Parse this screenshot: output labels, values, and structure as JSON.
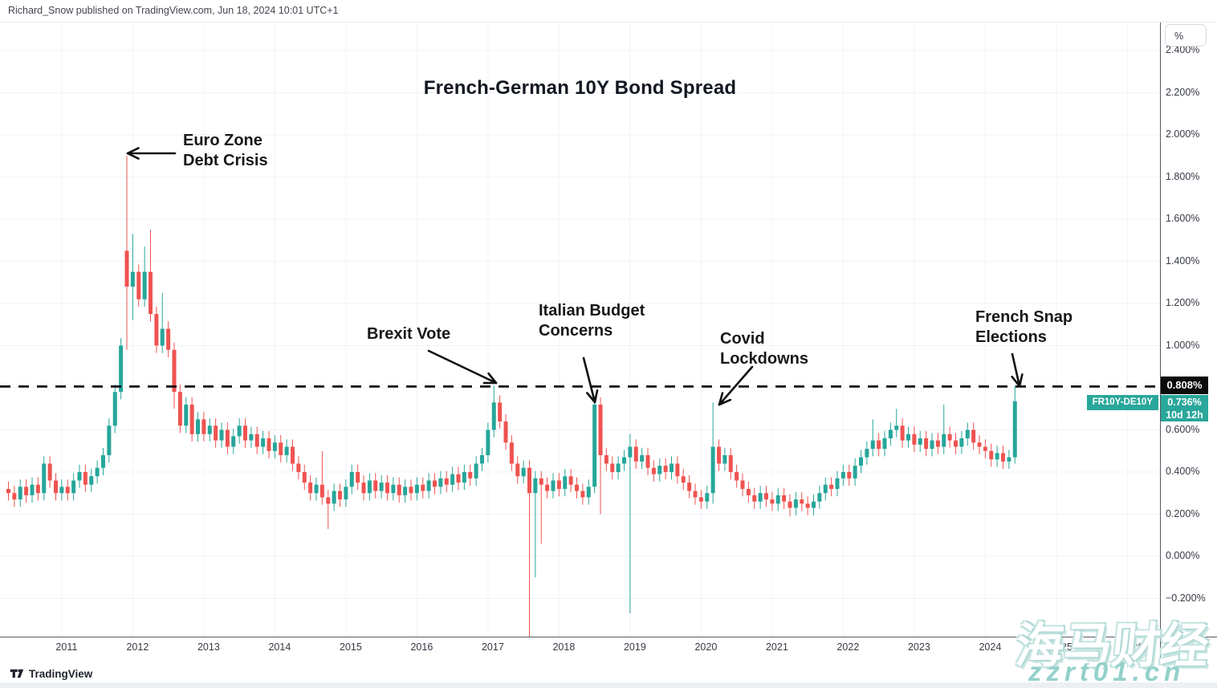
{
  "header": {
    "byline": "Richard_Snow published on TradingView.com, Jun 18, 2024 10:01 UTC+1"
  },
  "footer": {
    "brand": "TradingView"
  },
  "watermark": {
    "line1": "海马财经",
    "line2": "zzrt01.cn"
  },
  "colors": {
    "up": "#26a69a",
    "down": "#ef5350",
    "badge_teal": "#2aa79b",
    "threshold_badge_bg": "#0b0b0b",
    "grid": "#f0f3fa",
    "arrow": "#101113"
  },
  "price_scale": {
    "unit_button": "%",
    "ticks": [
      {
        "label": "2.400%",
        "value": 2.4
      },
      {
        "label": "2.200%",
        "value": 2.2
      },
      {
        "label": "2.000%",
        "value": 2.0
      },
      {
        "label": "1.800%",
        "value": 1.8
      },
      {
        "label": "1.600%",
        "value": 1.6
      },
      {
        "label": "1.400%",
        "value": 1.4
      },
      {
        "label": "1.200%",
        "value": 1.2
      },
      {
        "label": "1.000%",
        "value": 1.0
      },
      {
        "label": "0.600%",
        "value": 0.6
      },
      {
        "label": "0.400%",
        "value": 0.4
      },
      {
        "label": "0.200%",
        "value": 0.2
      },
      {
        "label": "0.000%",
        "value": 0.0
      },
      {
        "label": "−0.200%",
        "value": -0.2
      }
    ]
  },
  "time_scale": {
    "ticks": [
      {
        "label": "2011",
        "year": 2011
      },
      {
        "label": "2012",
        "year": 2012
      },
      {
        "label": "2013",
        "year": 2013
      },
      {
        "label": "2014",
        "year": 2014
      },
      {
        "label": "2015",
        "year": 2015
      },
      {
        "label": "2016",
        "year": 2016
      },
      {
        "label": "2017",
        "year": 2017
      },
      {
        "label": "2018",
        "year": 2018
      },
      {
        "label": "2019",
        "year": 2019
      },
      {
        "label": "2020",
        "year": 2020
      },
      {
        "label": "2021",
        "year": 2021
      },
      {
        "label": "2022",
        "year": 2022
      },
      {
        "label": "2023",
        "year": 2023
      },
      {
        "label": "2024",
        "year": 2024
      },
      {
        "label": "2025",
        "year": 2025
      },
      {
        "label": "2026",
        "year": 2026
      }
    ]
  },
  "chart_data": {
    "type": "candlestick",
    "title": "French-German 10Y Bond Spread",
    "symbol": "FR10Y-DE10Y",
    "unit": "percent",
    "interval": "monthly",
    "start_month": "2010-04",
    "ylim": [
      -0.35,
      2.45
    ],
    "first_open": 0.32,
    "default_wick": 0.035,
    "closes": [
      0.3,
      0.27,
      0.33,
      0.29,
      0.34,
      0.3,
      0.44,
      0.36,
      0.3,
      0.33,
      0.3,
      0.36,
      0.4,
      0.34,
      0.38,
      0.42,
      0.48,
      0.62,
      0.78,
      1.0,
      1.28,
      1.35,
      1.22,
      1.35,
      1.15,
      1.0,
      1.08,
      0.98,
      0.78,
      0.62,
      0.72,
      0.58,
      0.65,
      0.58,
      0.62,
      0.55,
      0.6,
      0.52,
      0.57,
      0.62,
      0.55,
      0.58,
      0.52,
      0.56,
      0.5,
      0.54,
      0.48,
      0.52,
      0.44,
      0.4,
      0.35,
      0.3,
      0.34,
      0.28,
      0.25,
      0.31,
      0.27,
      0.33,
      0.4,
      0.35,
      0.3,
      0.36,
      0.31,
      0.35,
      0.3,
      0.34,
      0.29,
      0.33,
      0.3,
      0.34,
      0.31,
      0.36,
      0.33,
      0.37,
      0.34,
      0.39,
      0.35,
      0.4,
      0.37,
      0.44,
      0.48,
      0.6,
      0.73,
      0.64,
      0.54,
      0.44,
      0.38,
      0.42,
      0.3,
      0.37,
      0.34,
      0.31,
      0.36,
      0.32,
      0.38,
      0.34,
      0.31,
      0.28,
      0.33,
      0.72,
      0.48,
      0.44,
      0.4,
      0.44,
      0.47,
      0.52,
      0.45,
      0.48,
      0.42,
      0.39,
      0.43,
      0.4,
      0.44,
      0.38,
      0.35,
      0.31,
      0.28,
      0.26,
      0.3,
      0.52,
      0.44,
      0.48,
      0.4,
      0.36,
      0.32,
      0.29,
      0.26,
      0.3,
      0.27,
      0.25,
      0.29,
      0.26,
      0.23,
      0.27,
      0.25,
      0.23,
      0.26,
      0.3,
      0.34,
      0.32,
      0.37,
      0.4,
      0.37,
      0.43,
      0.47,
      0.51,
      0.55,
      0.51,
      0.56,
      0.6,
      0.62,
      0.55,
      0.58,
      0.53,
      0.56,
      0.51,
      0.55,
      0.52,
      0.58,
      0.55,
      0.52,
      0.56,
      0.6,
      0.54,
      0.52,
      0.5,
      0.46,
      0.49,
      0.45,
      0.47,
      0.736
    ],
    "overrides": {
      "2011-12": {
        "o": 1.45,
        "h": 1.9,
        "l": 0.98
      },
      "2012-01": {
        "h": 1.53,
        "l": 1.12
      },
      "2012-03": {
        "h": 1.47
      },
      "2012-04": {
        "h": 1.55
      },
      "2012-06": {
        "h": 1.25
      },
      "2012-08": {
        "l": 0.7
      },
      "2014-09": {
        "h": 0.5
      },
      "2014-10": {
        "l": 0.13
      },
      "2017-02": {
        "h": 0.81
      },
      "2017-08": {
        "l": -0.45
      },
      "2017-09": {
        "l": -0.1
      },
      "2017-10": {
        "l": 0.06
      },
      "2018-07": {
        "h": 0.76,
        "l": 0.3
      },
      "2018-08": {
        "l": 0.2
      },
      "2019-01": {
        "h": 0.58,
        "l": -0.27
      },
      "2020-03": {
        "h": 0.73,
        "l": 0.25
      },
      "2021-04": {
        "l": 0.19
      },
      "2022-06": {
        "h": 0.65
      },
      "2022-10": {
        "h": 0.7
      },
      "2023-06": {
        "h": 0.72
      },
      "2024-06": {
        "h": 0.81,
        "l": 0.44
      }
    },
    "threshold": {
      "label": "0.808%",
      "value": 0.808,
      "style": "dashed"
    },
    "last": {
      "label": "0.736%",
      "value": 0.736,
      "countdown": "10d 12h"
    },
    "annotations": [
      {
        "id": "euro-zone-debt-crisis",
        "line1": "Euro Zone",
        "line2": "Debt Crisis"
      },
      {
        "id": "brexit-vote",
        "line1": "Brexit Vote"
      },
      {
        "id": "italian-budget-concerns",
        "line1": "Italian Budget",
        "line2": "Concerns"
      },
      {
        "id": "covid-lockdowns",
        "line1": "Covid",
        "line2": "Lockdowns"
      },
      {
        "id": "french-snap-elections",
        "line1": "French Snap",
        "line2": "Elections"
      }
    ]
  }
}
